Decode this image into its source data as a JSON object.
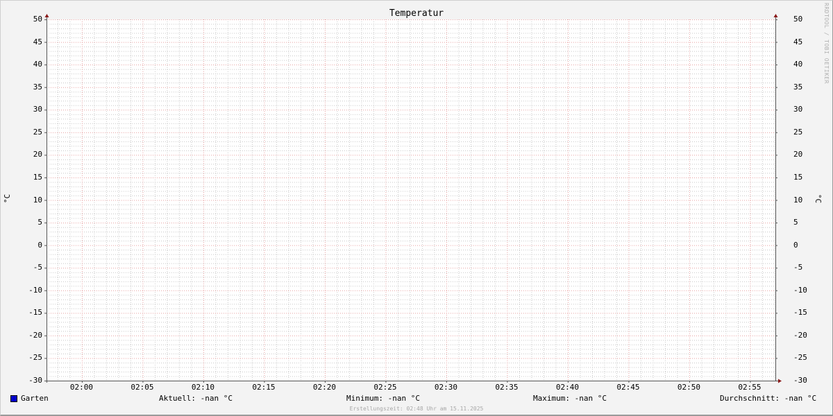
{
  "chart_data": {
    "type": "line",
    "title": "Temperatur",
    "ylabel": "°C",
    "ylim": [
      -30,
      50
    ],
    "yticks": [
      "50",
      "45",
      "40",
      "35",
      "30",
      "25",
      "20",
      "15",
      "10",
      "5",
      "0",
      "-5",
      "-10",
      "-15",
      "-20",
      "-25",
      "-30"
    ],
    "xlim": [
      "01:57",
      "02:57"
    ],
    "xticks": [
      "02:00",
      "02:05",
      "02:10",
      "02:15",
      "02:20",
      "02:25",
      "02:30",
      "02:35",
      "02:40",
      "02:45",
      "02:50",
      "02:55"
    ],
    "grid": true,
    "series": [
      {
        "name": "Garten",
        "color": "#0000cc",
        "values": []
      }
    ],
    "watermark": "RRDTOOL / TOBI OETIKER"
  },
  "legend": {
    "series_name": "Garten",
    "current": "Aktuell: -nan °C",
    "minimum": "Minimum: -nan °C",
    "maximum": "Maximum: -nan °C",
    "average": "Durchschnitt: -nan °C"
  },
  "footer": "Erstellungszeit: 02:48 Uhr am 15.11.2025",
  "colors": {
    "major_grid": "#e8a0a0",
    "minor_grid": "#c8c8c8",
    "axis": "#555555",
    "arrow": "#8b1a1a"
  }
}
